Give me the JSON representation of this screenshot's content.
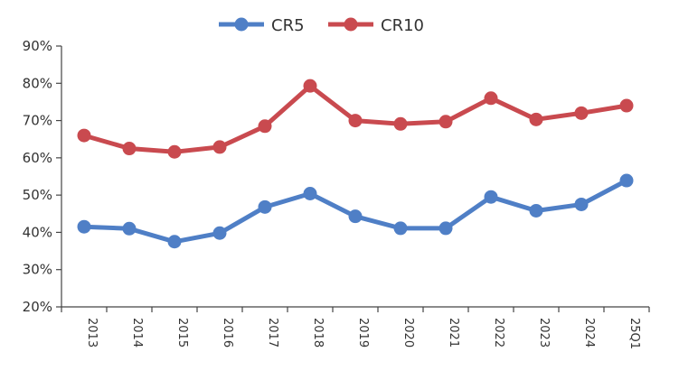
{
  "chart_data": {
    "type": "line",
    "title": "",
    "xlabel": "",
    "ylabel": "",
    "categories": [
      "2013",
      "2014",
      "2015",
      "2016",
      "2017",
      "2018",
      "2019",
      "2020",
      "2021",
      "2022",
      "2023",
      "2024",
      "25Q1"
    ],
    "ylim": [
      20,
      90
    ],
    "y_ticks": [
      20,
      30,
      40,
      50,
      60,
      70,
      80,
      90
    ],
    "y_tick_labels": [
      "20%",
      "30%",
      "40%",
      "50%",
      "60%",
      "70%",
      "80%",
      "90%"
    ],
    "legend_position": "top-center",
    "grid": false,
    "series": [
      {
        "name": "CR5",
        "color": "#4f7fc6",
        "values": [
          41.5,
          41.0,
          37.5,
          39.8,
          46.8,
          50.4,
          44.3,
          41.1,
          41.1,
          49.5,
          45.8,
          47.5,
          53.9
        ]
      },
      {
        "name": "CR10",
        "color": "#c94a4f",
        "values": [
          66.0,
          62.5,
          61.6,
          62.9,
          68.5,
          79.3,
          70.0,
          69.1,
          69.7,
          76.0,
          70.3,
          72.0,
          74.0
        ]
      }
    ]
  }
}
